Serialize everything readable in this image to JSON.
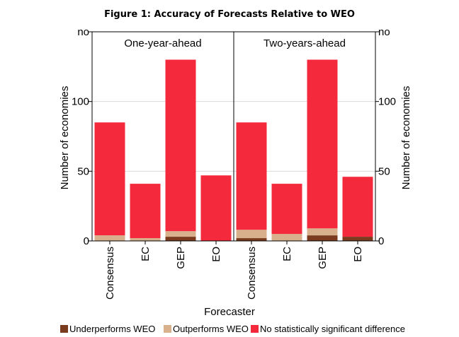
{
  "chart_data": {
    "type": "bar",
    "stacked": true,
    "title": "Figure 1: Accuracy of Forecasts Relative to WEO",
    "xlabel": "Forecaster",
    "ylabel": "Number of economies",
    "ylabel_right": "Number of economies",
    "ylim": [
      0,
      150
    ],
    "yticks": [
      0,
      50,
      100
    ],
    "top_tick_label": "no",
    "grid": true,
    "legend_position": "bottom",
    "categories": [
      "Consensus",
      "EC",
      "GEP",
      "EO"
    ],
    "series_meta": [
      {
        "key": "under",
        "name": "Underperforms WEO",
        "color": "#7a3b1e"
      },
      {
        "key": "out",
        "name": "Outperforms WEO",
        "color": "#d8b08c"
      },
      {
        "key": "nosig",
        "name": "No statistically significant difference",
        "color": "#f42a3c"
      }
    ],
    "panels": [
      {
        "title": "One-year-ahead",
        "under": [
          0,
          0,
          3,
          0
        ],
        "out": [
          4,
          2,
          4,
          0
        ],
        "nosig": [
          81,
          39,
          123,
          47
        ]
      },
      {
        "title": "Two-years-ahead",
        "under": [
          2,
          0,
          4,
          3
        ],
        "out": [
          6,
          5,
          5,
          0
        ],
        "nosig": [
          77,
          36,
          121,
          43
        ]
      }
    ]
  }
}
